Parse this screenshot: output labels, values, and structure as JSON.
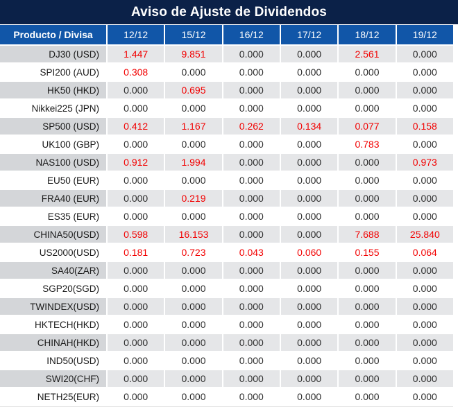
{
  "title": "Aviso de Ajuste de Dividendos",
  "colors": {
    "title_bg": "#0b2148",
    "header_bg": "#1156a8",
    "header_text": "#ffffff",
    "gray_row_product_bg": "#d4d6d9",
    "gray_row_value_bg": "#e5e6e8",
    "white_row_bg": "#ffffff",
    "value_text": "#2b2b2b",
    "nonzero_value_text": "#f20000"
  },
  "table": {
    "product_header": "Producto / Divisa",
    "dates": [
      "12/12",
      "15/12",
      "16/12",
      "17/12",
      "18/12",
      "19/12"
    ],
    "zero_value": "0.000",
    "rows": [
      {
        "product": "DJ30 (USD)",
        "values": [
          "1.447",
          "9.851",
          "0.000",
          "0.000",
          "2.561",
          "0.000"
        ]
      },
      {
        "product": "SPI200 (AUD)",
        "values": [
          "0.308",
          "0.000",
          "0.000",
          "0.000",
          "0.000",
          "0.000"
        ]
      },
      {
        "product": "HK50 (HKD)",
        "values": [
          "0.000",
          "0.695",
          "0.000",
          "0.000",
          "0.000",
          "0.000"
        ]
      },
      {
        "product": "Nikkei225 (JPN)",
        "values": [
          "0.000",
          "0.000",
          "0.000",
          "0.000",
          "0.000",
          "0.000"
        ]
      },
      {
        "product": "SP500 (USD)",
        "values": [
          "0.412",
          "1.167",
          "0.262",
          "0.134",
          "0.077",
          "0.158"
        ]
      },
      {
        "product": "UK100 (GBP)",
        "values": [
          "0.000",
          "0.000",
          "0.000",
          "0.000",
          "0.783",
          "0.000"
        ]
      },
      {
        "product": "NAS100 (USD)",
        "values": [
          "0.912",
          "1.994",
          "0.000",
          "0.000",
          "0.000",
          "0.973"
        ]
      },
      {
        "product": "EU50 (EUR)",
        "values": [
          "0.000",
          "0.000",
          "0.000",
          "0.000",
          "0.000",
          "0.000"
        ]
      },
      {
        "product": "FRA40 (EUR)",
        "values": [
          "0.000",
          "0.219",
          "0.000",
          "0.000",
          "0.000",
          "0.000"
        ]
      },
      {
        "product": "ES35 (EUR)",
        "values": [
          "0.000",
          "0.000",
          "0.000",
          "0.000",
          "0.000",
          "0.000"
        ]
      },
      {
        "product": "CHINA50(USD)",
        "values": [
          "0.598",
          "16.153",
          "0.000",
          "0.000",
          "7.688",
          "25.840"
        ]
      },
      {
        "product": "US2000(USD)",
        "values": [
          "0.181",
          "0.723",
          "0.043",
          "0.060",
          "0.155",
          "0.064"
        ]
      },
      {
        "product": "SA40(ZAR)",
        "values": [
          "0.000",
          "0.000",
          "0.000",
          "0.000",
          "0.000",
          "0.000"
        ]
      },
      {
        "product": "SGP20(SGD)",
        "values": [
          "0.000",
          "0.000",
          "0.000",
          "0.000",
          "0.000",
          "0.000"
        ]
      },
      {
        "product": "TWINDEX(USD)",
        "values": [
          "0.000",
          "0.000",
          "0.000",
          "0.000",
          "0.000",
          "0.000"
        ]
      },
      {
        "product": "HKTECH(HKD)",
        "values": [
          "0.000",
          "0.000",
          "0.000",
          "0.000",
          "0.000",
          "0.000"
        ]
      },
      {
        "product": "CHINAH(HKD)",
        "values": [
          "0.000",
          "0.000",
          "0.000",
          "0.000",
          "0.000",
          "0.000"
        ]
      },
      {
        "product": "IND50(USD)",
        "values": [
          "0.000",
          "0.000",
          "0.000",
          "0.000",
          "0.000",
          "0.000"
        ]
      },
      {
        "product": "SWI20(CHF)",
        "values": [
          "0.000",
          "0.000",
          "0.000",
          "0.000",
          "0.000",
          "0.000"
        ]
      },
      {
        "product": "NETH25(EUR)",
        "values": [
          "0.000",
          "0.000",
          "0.000",
          "0.000",
          "0.000",
          "0.000"
        ]
      }
    ]
  }
}
